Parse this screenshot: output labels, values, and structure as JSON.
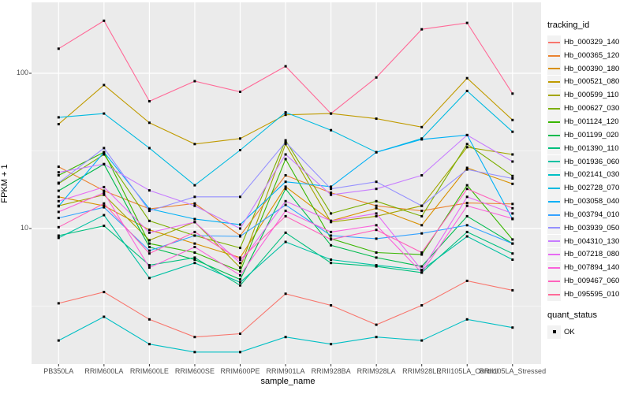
{
  "figure": {
    "y_axis": {
      "label": "FPKM + 1",
      "tick_labels": [
        "100",
        "10"
      ]
    },
    "x_axis": {
      "label": "sample_name"
    },
    "legend": {
      "title": "tracking_id"
    },
    "quant_legend": {
      "title": "quant_status",
      "ok_label": "OK"
    }
  },
  "colors": {
    "panel_bg": "#EBEBEB",
    "grid": "#FFFFFF",
    "axis_text": "#4D4D4D",
    "tick_mark": "#333333",
    "marker": "#000000",
    "legend_key_bg": "#F2F2F2"
  },
  "chart_data": {
    "type": "line",
    "title": "",
    "xlabel": "sample_name",
    "ylabel": "FPKM + 1",
    "yscale": "log10",
    "ylim": [
      1.3,
      280
    ],
    "y_major_ticks": [
      100,
      10
    ],
    "y_minor_gridlines": [
      31.62,
      3.162
    ],
    "grid": true,
    "legend_position": "right",
    "legend_title": "tracking_id",
    "point_legend": {
      "title": "quant_status",
      "label": "OK"
    },
    "categories": [
      "PB350LA",
      "RRIM600LA",
      "RRIM600LE",
      "RRIM600SE",
      "RRIM600PE",
      "RRIM901LA",
      "RRIM928BA",
      "RRIM928LA",
      "RRIM928LE",
      "RRII105LA_Control",
      "RRII105LA_Stressed"
    ],
    "series": [
      {
        "name": "Hb_000329_140",
        "color": "#F8766D",
        "values": [
          3.3,
          3.9,
          2.6,
          2.0,
          2.1,
          3.8,
          3.2,
          2.4,
          3.2,
          4.6,
          4.0
        ]
      },
      {
        "name": "Hb_000365_120",
        "color": "#EA8331",
        "values": [
          25,
          17.5,
          13.4,
          14.5,
          9.0,
          22.0,
          17.0,
          14.0,
          13.0,
          14.6,
          14.4
        ]
      },
      {
        "name": "Hb_000390_180",
        "color": "#D89000",
        "values": [
          16.0,
          14.0,
          9.8,
          8.0,
          6.5,
          18.6,
          11.2,
          13.5,
          10.5,
          24.6,
          19.4
        ]
      },
      {
        "name": "Hb_000521_080",
        "color": "#C09B00",
        "values": [
          47,
          84,
          48,
          35,
          38,
          54,
          55,
          51,
          45,
          93,
          50
        ]
      },
      {
        "name": "Hb_000599_110",
        "color": "#A3A500",
        "values": [
          14.0,
          16.5,
          8.4,
          11.0,
          5.6,
          35.0,
          11.0,
          12.0,
          14.0,
          33.4,
          30.0
        ]
      },
      {
        "name": "Hb_000627_030",
        "color": "#7CAE00",
        "values": [
          19.5,
          30.0,
          11.2,
          9.0,
          7.5,
          37.0,
          12.5,
          15.0,
          12.0,
          35.0,
          21.8
        ]
      },
      {
        "name": "Hb_001124_120",
        "color": "#39B600",
        "values": [
          22.0,
          31.0,
          8.0,
          7.0,
          5.3,
          28.0,
          8.6,
          7.0,
          6.8,
          19.0,
          8.5
        ]
      },
      {
        "name": "Hb_001199_020",
        "color": "#00BB4E",
        "values": [
          17.5,
          26.0,
          7.6,
          6.3,
          4.7,
          18.0,
          7.8,
          6.5,
          5.7,
          12.0,
          8.0
        ]
      },
      {
        "name": "Hb_001390_110",
        "color": "#00BF7D",
        "values": [
          9.0,
          10.4,
          5.8,
          6.5,
          4.3,
          9.4,
          6.0,
          5.7,
          5.2,
          9.5,
          6.9
        ]
      },
      {
        "name": "Hb_001936_060",
        "color": "#00C1A3",
        "values": [
          8.7,
          12.2,
          4.8,
          6.0,
          4.5,
          8.2,
          6.3,
          5.8,
          5.4,
          8.9,
          6.3
        ]
      },
      {
        "name": "Hb_002141_030",
        "color": "#00BFC4",
        "values": [
          1.9,
          2.7,
          1.8,
          1.6,
          1.6,
          2.0,
          1.8,
          2.0,
          1.9,
          2.6,
          2.3
        ]
      },
      {
        "name": "Hb_002728_070",
        "color": "#00BAE0",
        "values": [
          52,
          55,
          33,
          19,
          32,
          56,
          43,
          31,
          38,
          77,
          42
        ]
      },
      {
        "name": "Hb_003058_040",
        "color": "#00B0F6",
        "values": [
          13.9,
          31.0,
          13.4,
          11.5,
          10.6,
          20.0,
          18.6,
          31.0,
          37.5,
          40.0,
          11.5
        ]
      },
      {
        "name": "Hb_003794_010",
        "color": "#35A2FF",
        "values": [
          11.7,
          13.7,
          7.2,
          9.0,
          8.9,
          14.2,
          9.0,
          8.6,
          9.3,
          10.5,
          8.0
        ]
      },
      {
        "name": "Hb_003939_050",
        "color": "#9590FF",
        "values": [
          19.7,
          33.0,
          13.0,
          16.0,
          16.0,
          36.0,
          18.0,
          20.0,
          14.0,
          24.0,
          21.0
        ]
      },
      {
        "name": "Hb_004310_130",
        "color": "#C77CFF",
        "values": [
          23.0,
          26.0,
          17.6,
          14.0,
          10.0,
          30.0,
          16.5,
          18.0,
          22.0,
          40.0,
          27.0
        ]
      },
      {
        "name": "Hb_007218_080",
        "color": "#E76BF3",
        "values": [
          15.0,
          18.5,
          9.4,
          11.0,
          6.0,
          15.0,
          11.2,
          12.5,
          5.4,
          16.0,
          12.5
        ]
      },
      {
        "name": "Hb_007894_140",
        "color": "#FA62DB",
        "values": [
          12.8,
          17.0,
          5.6,
          7.6,
          5.0,
          13.0,
          9.5,
          10.5,
          5.2,
          14.0,
          11.6
        ]
      },
      {
        "name": "Hb_009467_060",
        "color": "#FF62BC",
        "values": [
          10.2,
          14.5,
          6.9,
          9.5,
          6.3,
          12.0,
          8.5,
          9.8,
          7.0,
          18.0,
          13.5
        ]
      },
      {
        "name": "Hb_095595_010",
        "color": "#FF6A98",
        "values": [
          144,
          218,
          66,
          89,
          76,
          111,
          55,
          94,
          192,
          211,
          74
        ]
      }
    ]
  }
}
